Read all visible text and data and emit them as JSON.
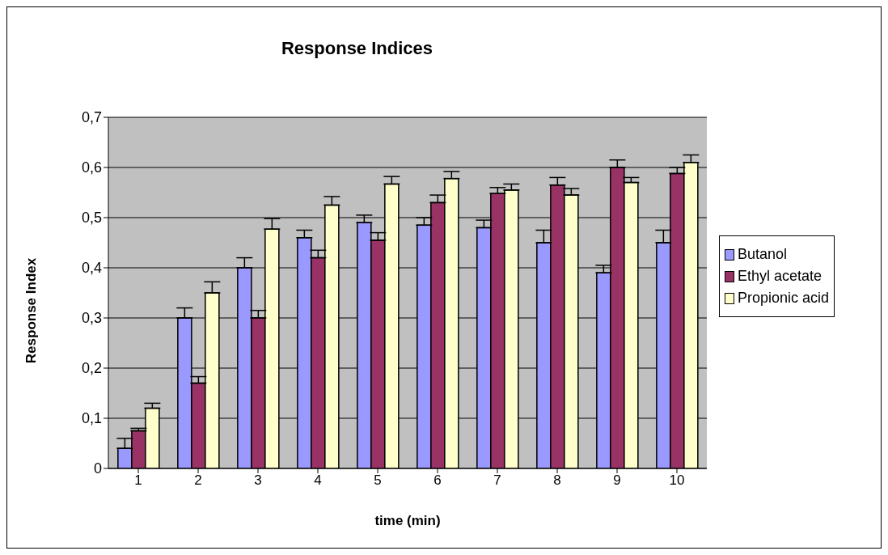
{
  "chart_data": {
    "type": "bar",
    "title": "Response Indices",
    "xlabel": "time (min)",
    "ylabel": "Response Index",
    "categories": [
      "1",
      "2",
      "3",
      "4",
      "5",
      "6",
      "7",
      "8",
      "9",
      "10"
    ],
    "series": [
      {
        "name": "Butanol",
        "color": "#9999ff",
        "values": [
          0.04,
          0.3,
          0.4,
          0.46,
          0.49,
          0.485,
          0.48,
          0.45,
          0.39,
          0.45
        ],
        "errors": [
          [
            0.04,
            0.06
          ],
          [
            0.3,
            0.32
          ],
          [
            0.4,
            0.42
          ],
          [
            0.46,
            0.475
          ],
          [
            0.49,
            0.505
          ],
          [
            0.485,
            0.5
          ],
          [
            0.48,
            0.495
          ],
          [
            0.45,
            0.475
          ],
          [
            0.39,
            0.405
          ],
          [
            0.45,
            0.475
          ]
        ]
      },
      {
        "name": "Ethyl acetate",
        "color": "#993366",
        "values": [
          0.075,
          0.17,
          0.3,
          0.42,
          0.455,
          0.53,
          0.548,
          0.565,
          0.6,
          0.588
        ],
        "errors": [
          [
            0.075,
            0.08
          ],
          [
            0.17,
            0.183
          ],
          [
            0.3,
            0.315
          ],
          [
            0.42,
            0.435
          ],
          [
            0.455,
            0.47
          ],
          [
            0.53,
            0.545
          ],
          [
            0.548,
            0.56
          ],
          [
            0.565,
            0.58
          ],
          [
            0.6,
            0.615
          ],
          [
            0.588,
            0.6
          ]
        ]
      },
      {
        "name": "Propionic acid",
        "color": "#ffffcc",
        "values": [
          0.12,
          0.35,
          0.477,
          0.525,
          0.567,
          0.578,
          0.555,
          0.545,
          0.57,
          0.61
        ],
        "errors": [
          [
            0.12,
            0.13
          ],
          [
            0.35,
            0.372
          ],
          [
            0.477,
            0.498
          ],
          [
            0.525,
            0.542
          ],
          [
            0.567,
            0.582
          ],
          [
            0.578,
            0.592
          ],
          [
            0.555,
            0.567
          ],
          [
            0.545,
            0.558
          ],
          [
            0.57,
            0.58
          ],
          [
            0.61,
            0.625
          ]
        ]
      }
    ],
    "ylim": [
      0,
      0.7
    ],
    "yticks": [
      0,
      {
        "value": 0.1,
        "label": "0,1"
      },
      {
        "value": 0.2,
        "label": "0,2"
      },
      {
        "value": 0.3,
        "label": "0,3"
      },
      {
        "value": 0.4,
        "label": "0,4"
      },
      {
        "value": 0.5,
        "label": "0,5"
      },
      {
        "value": 0.6,
        "label": "0,6"
      },
      {
        "value": 0.7,
        "label": "0,7"
      }
    ],
    "grid": "y",
    "legend": "right"
  }
}
